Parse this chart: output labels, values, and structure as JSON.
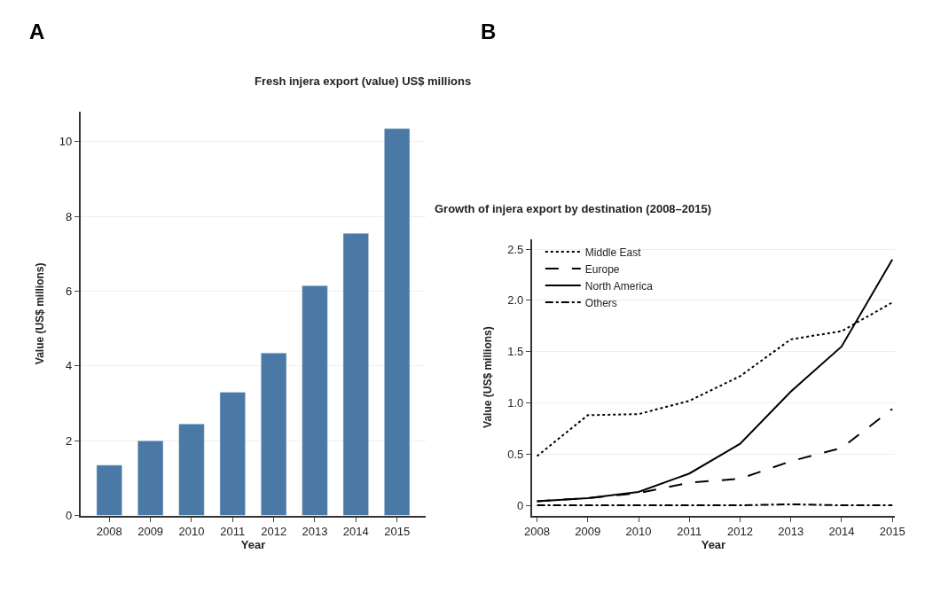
{
  "chart_data": [
    {
      "type": "bar",
      "title": "Fresh injera export (value) US$ millions",
      "xlabel": "Year",
      "ylabel": "Value (US$ millions)",
      "annotations": [
        "A"
      ],
      "categories": [
        "2008",
        "2009",
        "2010",
        "2011",
        "2012",
        "2013",
        "2014",
        "2015"
      ],
      "values": [
        1.35,
        2.0,
        2.45,
        3.3,
        4.35,
        6.15,
        7.55,
        10.35
      ],
      "color": "#4b79a5",
      "ylim": [
        0,
        10.8
      ],
      "yticks": [
        0,
        2,
        4,
        6,
        8,
        10
      ],
      "grid": "y",
      "legend": false
    },
    {
      "type": "line",
      "title": "Growth of injera export by destination (2008–2015)",
      "xlabel": "Year",
      "ylabel": "Value (US$ millions)",
      "annotations": [
        "B"
      ],
      "x": [
        2008,
        2009,
        2010,
        2011,
        2012,
        2013,
        2014,
        2015
      ],
      "series": [
        {
          "name": "Middle East",
          "color": "#000000",
          "line_style": "dotted",
          "values": [
            0.48,
            0.88,
            0.89,
            1.02,
            1.26,
            1.62,
            1.7,
            1.98
          ]
        },
        {
          "name": "Europe",
          "color": "#000000",
          "line_style": "dashed",
          "values": [
            0.04,
            0.07,
            0.12,
            0.22,
            0.26,
            0.43,
            0.56,
            0.94
          ]
        },
        {
          "name": "North America",
          "color": "#000000",
          "line_style": "solid",
          "values": [
            0.04,
            0.07,
            0.13,
            0.31,
            0.6,
            1.11,
            1.55,
            2.4
          ]
        },
        {
          "name": "Others",
          "color": "#000000",
          "line_style": "dashdot",
          "values": [
            0,
            0,
            0,
            0,
            0,
            0.01,
            0,
            0
          ]
        }
      ],
      "xlim": [
        2007.9,
        2015.05
      ],
      "xticks": [
        2008,
        2009,
        2010,
        2011,
        2012,
        2013,
        2014,
        2015
      ],
      "ylim": [
        -0.1,
        2.6
      ],
      "yticks": [
        0,
        0.5,
        {
          "value": 1,
          "label": "1.0"
        },
        1.5,
        {
          "value": 2,
          "label": "2.0"
        },
        2.5
      ],
      "grid": "y",
      "legend": "top left",
      "marker": "none"
    }
  ]
}
